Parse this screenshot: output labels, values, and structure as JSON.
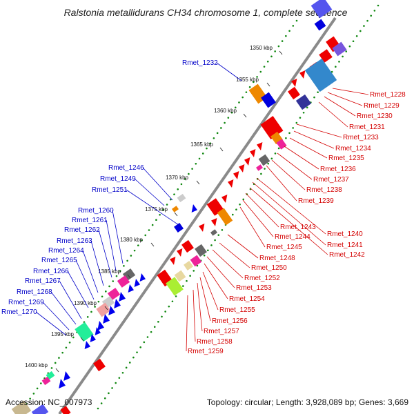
{
  "title": "Ralstonia metallidurans CH34 chromosome 1, complete sequence",
  "footer": {
    "accession": "Accession: NC_007973",
    "stats": "Topology: circular; Length: 3,928,089 bp; Genes: 3,669"
  },
  "colors": {
    "forward_label": "#0000c8",
    "reverse_label": "#d40000",
    "backbone": "#8a8a8a",
    "tick_mark": "#118811"
  },
  "ticks": [
    "1350 kbp",
    "1355 kbp",
    "1360 kbp",
    "1365 kbp",
    "1370 kbp",
    "1375 kbp",
    "1380 kbp",
    "1385 kbp",
    "1390 kbp",
    "1395 kbp",
    "1400 kbp"
  ],
  "forward_genes": [
    "Rmet_1232",
    "Rmet_1246",
    "Rmet_1249",
    "Rmet_1251",
    "Rmet_1260",
    "Rmet_1261",
    "Rmet_1262",
    "Rmet_1263",
    "Rmet_1264",
    "Rmet_1265",
    "Rmet_1266",
    "Rmet_1267",
    "Rmet_1268",
    "Rmet_1269",
    "Rmet_1270"
  ],
  "reverse_genes": [
    "Rmet_1228",
    "Rmet_1229",
    "Rmet_1230",
    "Rmet_1231",
    "Rmet_1233",
    "Rmet_1234",
    "Rmet_1235",
    "Rmet_1236",
    "Rmet_1237",
    "Rmet_1238",
    "Rmet_1239",
    "Rmet_1240",
    "Rmet_1241",
    "Rmet_1242",
    "Rmet_1243",
    "Rmet_1244",
    "Rmet_1245",
    "Rmet_1248",
    "Rmet_1250",
    "Rmet_1252",
    "Rmet_1253",
    "Rmet_1254",
    "Rmet_1255",
    "Rmet_1256",
    "Rmet_1257",
    "Rmet_1258",
    "Rmet_1259"
  ]
}
